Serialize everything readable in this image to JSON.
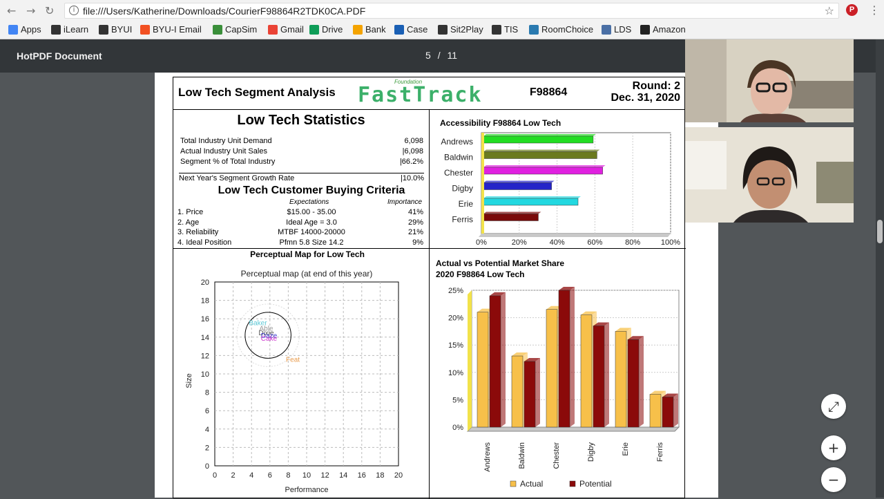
{
  "browser": {
    "url": "file:///Users/Katherine/Downloads/CourierF98864R2TDK0CA.PDF",
    "bookmarks": [
      "Apps",
      "iLearn",
      "BYUI",
      "BYU-I Email",
      "CapSim",
      "Gmail",
      "Drive",
      "Bank",
      "Case",
      "Sit2Play",
      "TIS",
      "RoomChoice",
      "LDS",
      "Amazon"
    ],
    "bookmark_colors": [
      "#4285f4",
      "#333333",
      "#333333",
      "#f25022",
      "#3a8f3a",
      "#ea4335",
      "#0f9d58",
      "#f4a300",
      "#1a5fb4",
      "#333333",
      "#333333",
      "#2a7ab0",
      "#4a6fa5",
      "#222222"
    ],
    "bookmark_icons": [
      "apps-grid-icon",
      "byu-icon",
      "byu-icon",
      "microsoft-icon",
      "capsim-icon",
      "gmail-icon",
      "drive-icon",
      "bank-icon",
      "case-icon",
      "play-icon",
      "byu-icon",
      "checkbox-icon",
      "lds-icon",
      "amazon-icon"
    ]
  },
  "pdf": {
    "title": "HotPDF Document",
    "page_current": "5",
    "page_sep": "/",
    "page_total": "11"
  },
  "report": {
    "heading": "Low Tech Segment Analysis",
    "logo_small": "Foundation",
    "logo": "FastTrack",
    "code": "F98864",
    "round": "Round: 2",
    "date": "Dec. 31, 2020",
    "stats_title": "Low Tech Statistics",
    "stats": [
      {
        "label": "Total Industry Unit Demand",
        "value": "6,098"
      },
      {
        "label": "Actual Industry Unit Sales",
        "value": "|6,098"
      },
      {
        "label": "Segment % of Total Industry",
        "value": "|66.2%"
      }
    ],
    "growth_label": "Next Year's Segment Growth Rate",
    "growth_value": "|10.0%",
    "criteria_title": "Low Tech Customer Buying Criteria",
    "criteria_head_exp": "Expectations",
    "criteria_head_imp": "Importance",
    "criteria": [
      {
        "label": "1. Price",
        "exp": "$15.00 - 35.00",
        "imp": "41%"
      },
      {
        "label": "2. Age",
        "exp": "Ideal Age = 3.0",
        "imp": "29%"
      },
      {
        "label": "3. Reliability",
        "exp": "MTBF 14000-20000",
        "imp": "21%"
      },
      {
        "label": "4. Ideal Position",
        "exp": "Pfmn 5.8 Size 14.2",
        "imp": "9%"
      }
    ]
  },
  "chart_data": [
    {
      "type": "bar",
      "orientation": "horizontal",
      "title": "Accessibility F98864 Low Tech",
      "categories": [
        "Andrews",
        "Baldwin",
        "Chester",
        "Digby",
        "Erie",
        "Ferris"
      ],
      "values": [
        58,
        60,
        63,
        36,
        50,
        29
      ],
      "colors": [
        "#22dd22",
        "#6b7a1e",
        "#e020e0",
        "#2424c8",
        "#22d8e0",
        "#7a0a0a"
      ],
      "xlim": [
        0,
        100
      ],
      "ticks": [
        "0%",
        "20%",
        "40%",
        "60%",
        "80%",
        "100%"
      ]
    },
    {
      "type": "scatter",
      "title": "Perceptual Map for Low Tech",
      "subtitle": "Perceptual map (at end of this year)",
      "xlabel": "Performance",
      "ylabel": "Size",
      "xlim": [
        0,
        20
      ],
      "ylim": [
        0,
        20
      ],
      "ticks": [
        "0",
        "2",
        "4",
        "6",
        "8",
        "10",
        "12",
        "14",
        "16",
        "18",
        "20"
      ],
      "circle": {
        "x": 5.8,
        "y": 14.2,
        "r": 2.5
      },
      "labels": [
        {
          "text": "Baker",
          "x": 4.7,
          "y": 15.3,
          "color": "#5bc8d6"
        },
        {
          "text": "Able",
          "x": 5.6,
          "y": 14.7,
          "color": "#999999"
        },
        {
          "text": "Dixie",
          "x": 5.6,
          "y": 14.2,
          "color": "#555555"
        },
        {
          "text": "Daze",
          "x": 5.9,
          "y": 13.9,
          "color": "#3333cc"
        },
        {
          "text": "Cake",
          "x": 5.9,
          "y": 13.6,
          "color": "#cc33cc"
        },
        {
          "text": "Feat",
          "x": 8.5,
          "y": 11.3,
          "color": "#e89a4a"
        }
      ]
    },
    {
      "type": "bar",
      "title": "Actual vs Potential Market Share",
      "subtitle": "2020 F98864 Low Tech",
      "categories": [
        "Andrews",
        "Baldwin",
        "Chester",
        "Digby",
        "Erie",
        "Ferris"
      ],
      "series": [
        {
          "name": "Actual",
          "values": [
            21,
            13,
            21.5,
            20.5,
            17.5,
            6
          ],
          "color": "#f7c04a"
        },
        {
          "name": "Potential",
          "values": [
            24,
            12,
            25,
            18.5,
            16,
            5.5
          ],
          "color": "#8b0a0a"
        }
      ],
      "ylim": [
        0,
        25
      ],
      "ticks": [
        "0%",
        "5%",
        "10%",
        "15%",
        "20%",
        "25%"
      ],
      "legend": "bottom"
    }
  ]
}
